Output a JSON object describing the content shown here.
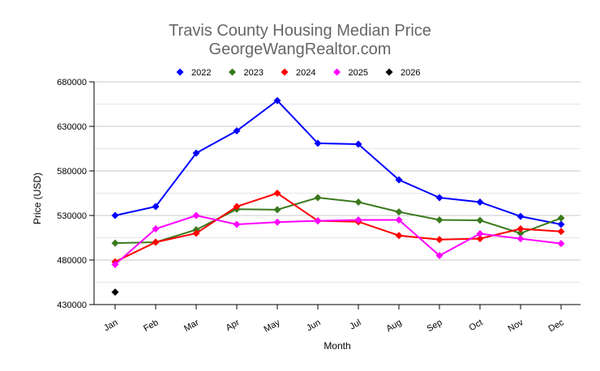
{
  "chart_data": {
    "type": "line",
    "title": "Travis County Housing Median Price",
    "subtitle": "GeorgeWangRealtor.com",
    "xlabel": "Month",
    "ylabel": "Price (USD)",
    "ylim": [
      430000,
      680000
    ],
    "yticks": [
      430000,
      480000,
      530000,
      580000,
      630000,
      680000
    ],
    "minor_grid_step": 25000,
    "grid": true,
    "legend_position": "top",
    "categories": [
      "Jan",
      "Feb",
      "Mar",
      "Apr",
      "May",
      "Jun",
      "Jul",
      "Aug",
      "Sep",
      "Oct",
      "Nov",
      "Dec"
    ],
    "series": [
      {
        "name": "2022",
        "color": "#0000ff",
        "values": [
          530000,
          540000,
          600000,
          625000,
          659000,
          611000,
          610000,
          570000,
          550000,
          545000,
          529000,
          520000
        ]
      },
      {
        "name": "2023",
        "color": "#3a7a1c",
        "values": [
          499000,
          500000,
          514000,
          537000,
          536500,
          550000,
          545000,
          534000,
          525000,
          524500,
          510000,
          527000
        ]
      },
      {
        "name": "2024",
        "color": "#ff0000",
        "values": [
          478000,
          500000,
          510000,
          540000,
          555000,
          524000,
          523000,
          507500,
          503000,
          504000,
          515000,
          512000
        ]
      },
      {
        "name": "2025",
        "color": "#ff00ff",
        "values": [
          475000,
          515000,
          530000,
          520000,
          522500,
          524000,
          525000,
          525000,
          485000,
          509500,
          504000,
          498500
        ]
      },
      {
        "name": "2026",
        "color": "#000000",
        "values": [
          444000,
          null,
          null,
          null,
          null,
          null,
          null,
          null,
          null,
          null,
          null,
          null
        ]
      }
    ]
  }
}
